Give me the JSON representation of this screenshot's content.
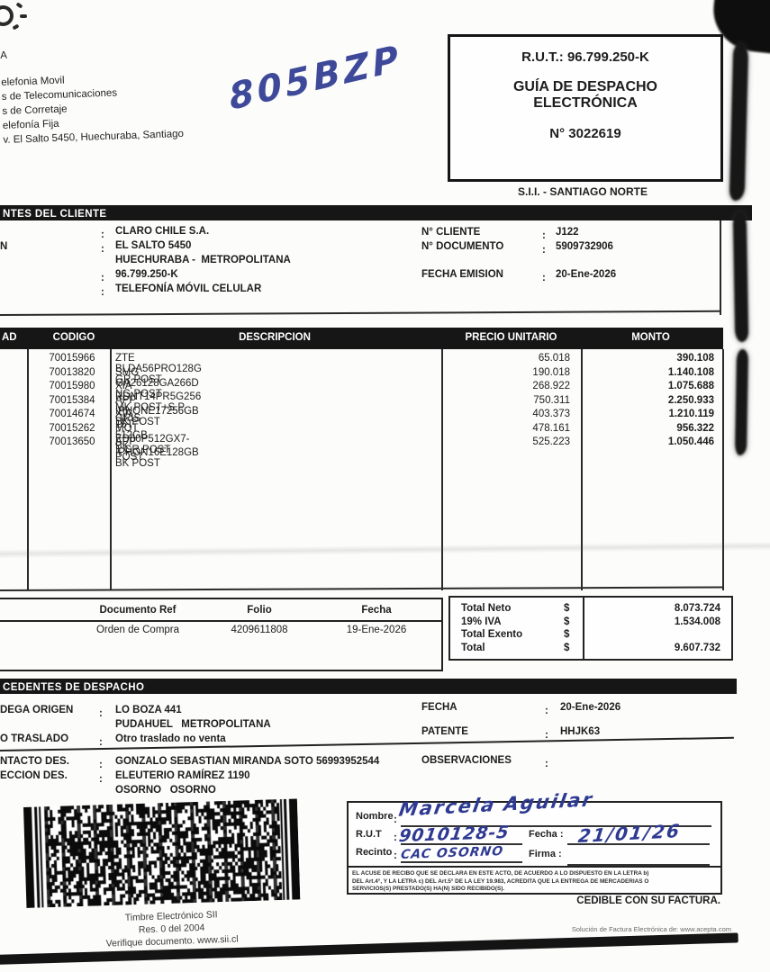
{
  "handwriting": {
    "plate": "805BZP",
    "nombre": "Marcela Aguilar",
    "rut": "9010128-5",
    "recinto": "CAC OSORNO",
    "fecha": "21/01/26"
  },
  "sender": {
    "partial_name": "A",
    "lines": [
      "elefonia Movil",
      "s de Telecomunicaciones",
      "s de Corretaje",
      "elefonía Fija",
      "v. El Salto 5450, Huechuraba, Santiago"
    ]
  },
  "rut_box": {
    "rut": "R.U.T.: 96.799.250-K",
    "title_line1": "GUÍA DE DESPACHO",
    "title_line2": "ELECTRÓNICA",
    "number": "N° 3022619",
    "sii_office": "S.I.I. - SANTIAGO NORTE"
  },
  "client": {
    "section_title": "NTES DEL CLIENTE",
    "label_fragment": "N",
    "name": "CLARO CHILE S.A.",
    "address1": "EL SALTO 5450",
    "address2": "HUECHURABA -  METROPOLITANA",
    "rut": "96.799.250-K",
    "giro": "TELEFONÍA MÓVIL CELULAR",
    "fields": [
      {
        "label": "N° CLIENTE",
        "value": "J122"
      },
      {
        "label": "N° DOCUMENTO",
        "value": "5909732906"
      },
      {
        "label": "FECHA EMISION",
        "value": "20-Ene-2026"
      }
    ]
  },
  "items": {
    "headers": {
      "cantidad": "AD",
      "codigo": "CODIGO",
      "descripcion": "DESCRIPCION",
      "precio": "PRECIO UNITARIO",
      "monto": "MONTO"
    },
    "rows": [
      {
        "codigo": "70015966",
        "descripcion": "ZTE BLDA56PRO128G GR POST",
        "precio": "65.018",
        "monto": "390.108"
      },
      {
        "codigo": "70013820",
        "descripcion": "SMG GA26128GA266D NG POST",
        "precio": "190.018",
        "monto": "1.140.108"
      },
      {
        "codigo": "70015980",
        "descripcion": "XIA RDNT14PR5G256 MK POST+S.P. GRIS",
        "precio": "268.922",
        "monto": "1.075.688"
      },
      {
        "codigo": "70015384",
        "descripcion": "APP IPHONE17256GB BK POST",
        "precio": "750.311",
        "monto": "2.250.933"
      },
      {
        "codigo": "70014674",
        "descripcion": "XIA 15T 512GB BK POST",
        "precio": "403.373",
        "monto": "1.210.119"
      },
      {
        "codigo": "70015262",
        "descripcion": "MOT ED60P512GX7-1 GR POST",
        "precio": "478.161",
        "monto": "956.322"
      },
      {
        "codigo": "70013650",
        "descripcion": "APP IPHON16E128GB BK POST",
        "precio": "525.223",
        "monto": "1.050.446"
      }
    ]
  },
  "references": {
    "headers": {
      "doc": "Documento Ref",
      "folio": "Folio",
      "fecha": "Fecha"
    },
    "row": {
      "doc": "Orden de Compra",
      "folio": "4209611808",
      "fecha": "19-Ene-2026"
    }
  },
  "totals": {
    "rows": [
      {
        "label": "Total Neto",
        "currency": "$",
        "value": "8.073.724"
      },
      {
        "label": "19% IVA",
        "currency": "$",
        "value": "1.534.008"
      },
      {
        "label": "Total Exento",
        "currency": "$",
        "value": ""
      },
      {
        "label": "Total",
        "currency": "$",
        "value": "9.607.732"
      }
    ]
  },
  "dispatch": {
    "section_title": "CEDENTES DE DESPACHO",
    "bodega_label": "DEGA ORIGEN",
    "bodega_value1": "LO BOZA 441",
    "bodega_value2": "PUDAHUEL   METROPOLITANA",
    "traslado_label": "O TRASLADO",
    "traslado_value": "Otro traslado no venta",
    "contacto_label": "NTACTO DES.",
    "contacto_value": "GONZALO SEBASTIAN MIRANDA SOTO 56993952544",
    "direccion_label": "ECCION DES.",
    "direccion_value1": "ELEUTERIO RAMÍREZ 1190",
    "direccion_value2": "OSORNO   OSORNO",
    "fecha_label": "FECHA",
    "fecha_value": "20-Ene-2026",
    "patente_label": "PATENTE",
    "patente_value": "HHJK63",
    "observaciones_label": "OBSERVACIONES",
    "observaciones_value": ""
  },
  "stamp": {
    "line1": "Timbre Electrónico SII",
    "line2": "Res. 0 del 2004",
    "line3": "Verifique documento. www.sii.cl"
  },
  "receipt": {
    "nombre_label": "Nombre",
    "rut_label": "R.U.T",
    "recinto_label": "Recinto",
    "fecha_label": "Fecha :",
    "firma_label": "Firma :",
    "legal_lines": [
      "EL ACUSE DE RECIBO QUE SE DECLARA EN ESTE ACTO, DE ACUERDO A LO DISPUESTO EN LA LETRA b)",
      "DEL Art.4°, Y LA LETRA c) DEL Art.5° DE LA LEY 19.983, ACREDITA QUE LA ENTREGA DE MERCADERIAS O",
      "SERVICIOS(S) PRESTADO(S) HA(N) SIDO RECIBIDO(S)."
    ],
    "cedible": "CEDIBLE CON SU FACTURA."
  },
  "footer": {
    "provider": "Solución de Factura Electrónica de: www.acepta.com"
  },
  "colors": {
    "ink": "#1d1d1d",
    "bar": "#161616",
    "handwriting": "#2e3a92"
  }
}
